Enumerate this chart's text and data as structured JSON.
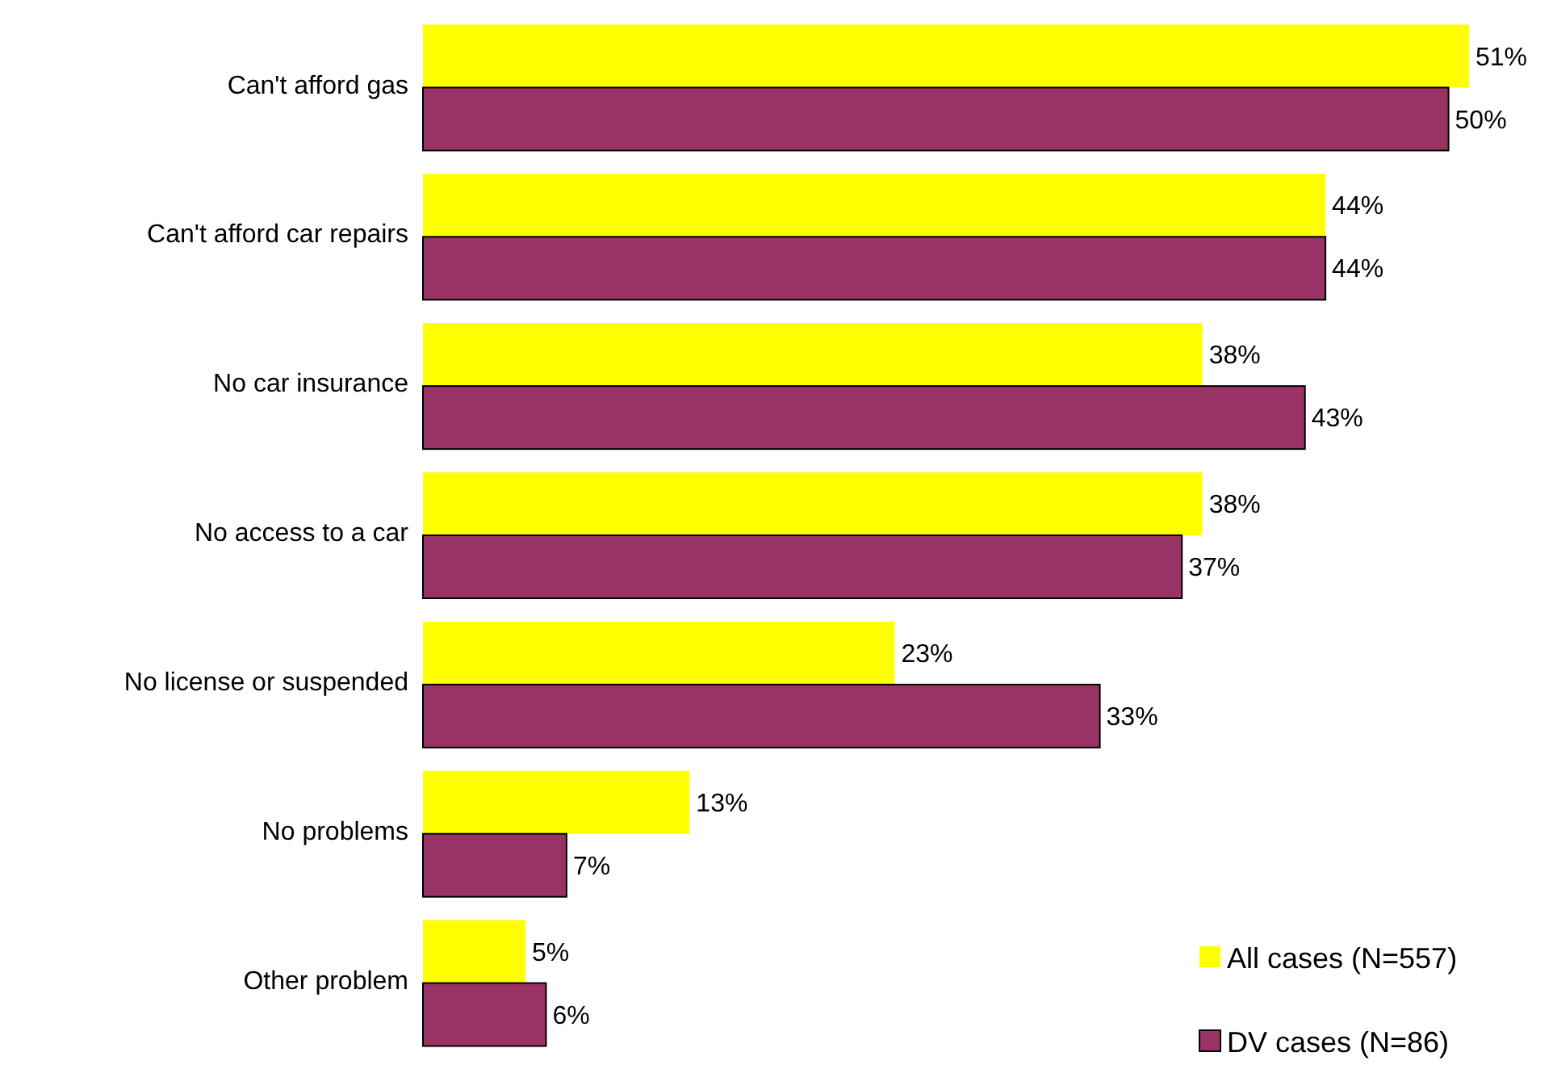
{
  "chart_data": {
    "type": "bar",
    "orientation": "horizontal",
    "categories": [
      "Can't afford gas",
      "Can't afford car repairs",
      "No car insurance",
      "No access to a car",
      "No license or suspended",
      "No problems",
      "Other problem"
    ],
    "series": [
      {
        "name": "All cases (N=557)",
        "color": "#ffff00",
        "values": [
          51,
          44,
          38,
          38,
          23,
          13,
          5
        ],
        "value_labels": [
          "51%",
          "44%",
          "38%",
          "38%",
          "23%",
          "13%",
          "5%"
        ]
      },
      {
        "name": "DV cases (N=86)",
        "color": "#993366",
        "values": [
          50,
          44,
          43,
          37,
          33,
          7,
          6
        ],
        "value_labels": [
          "50%",
          "44%",
          "43%",
          "37%",
          "33%",
          "7%",
          "6%"
        ]
      }
    ],
    "legend": "bottom right"
  }
}
